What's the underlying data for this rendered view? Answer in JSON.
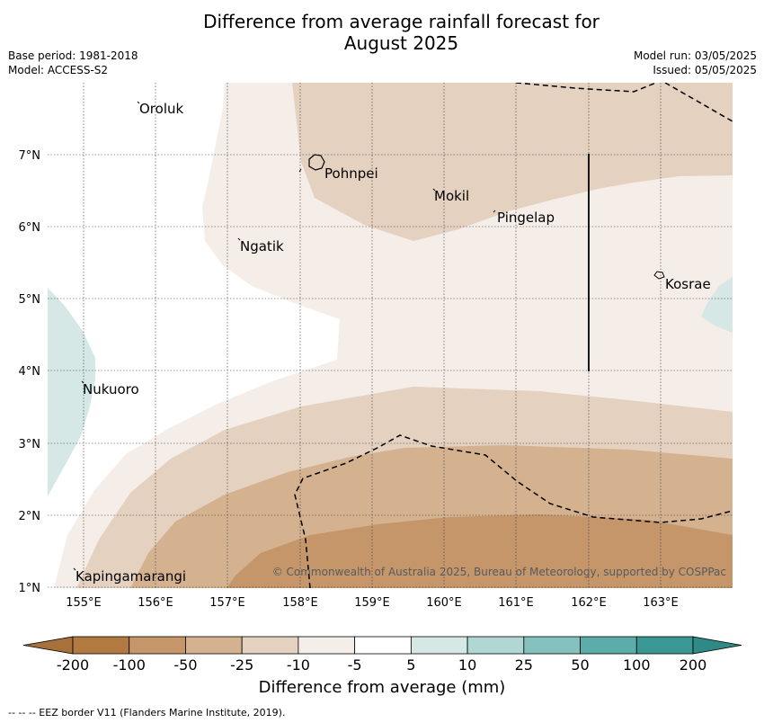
{
  "title_line1": "Difference from average rainfall forecast for",
  "title_line2": "August 2025",
  "base_period": "Base period: 1981-2018",
  "model": "Model: ACCESS-S2",
  "model_run": "Model run: 03/05/2025",
  "issued": "Issued: 05/05/2025",
  "lat_labels": [
    "7°N",
    "6°N",
    "5°N",
    "4°N",
    "3°N",
    "2°N",
    "1°N"
  ],
  "lon_labels": [
    "155°E",
    "156°E",
    "157°E",
    "158°E",
    "159°E",
    "160°E",
    "161°E",
    "162°E",
    "163°E"
  ],
  "places": {
    "oroluk": "Oroluk",
    "pohnpei": "Pohnpei",
    "mokil": "Mokil",
    "pingelap": "Pingelap",
    "ngatik": "Ngatik",
    "kosrae": "Kosrae",
    "nukuoro": "Nukuoro",
    "kapingamarangi": "Kapingamarangi"
  },
  "copyright": "© Commonwealth of Australia 2025, Bureau of Meteorology, supported by COSPPac",
  "colorbar": {
    "ticks": [
      "-200",
      "-100",
      "-50",
      "-25",
      "-10",
      "-5",
      "5",
      "10",
      "25",
      "50",
      "100",
      "200"
    ],
    "colors": [
      "#a8703a",
      "#b27a41",
      "#c4966a",
      "#d4b290",
      "#e5d1c0",
      "#f4ede8",
      "#ffffff",
      "#d5e8e6",
      "#b0d7d4",
      "#85c2bf",
      "#5cadaa",
      "#3a9894",
      "#2f8a86"
    ],
    "title": "Difference from average (mm)"
  },
  "footnote": "-- -- -- EEZ border V11 (Flanders Marine Institute, 2019)."
}
